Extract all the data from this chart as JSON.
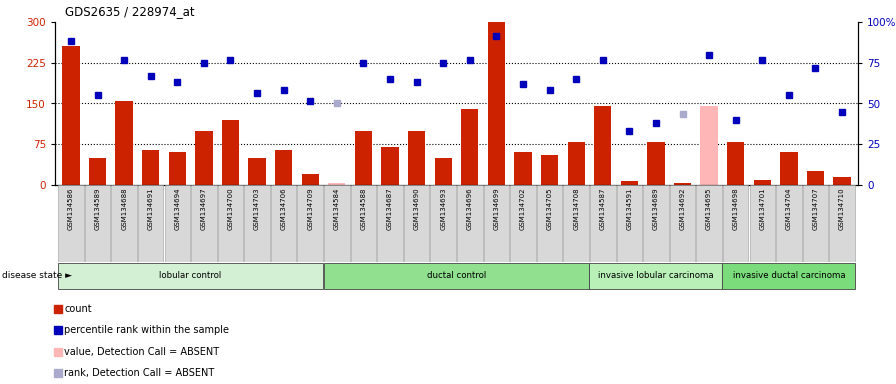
{
  "title": "GDS2635 / 228974_at",
  "samples": [
    "GSM134586",
    "GSM134589",
    "GSM134688",
    "GSM134691",
    "GSM134694",
    "GSM134697",
    "GSM134700",
    "GSM134703",
    "GSM134706",
    "GSM134709",
    "GSM134584",
    "GSM134588",
    "GSM134687",
    "GSM134690",
    "GSM134693",
    "GSM134696",
    "GSM134699",
    "GSM134702",
    "GSM134705",
    "GSM134708",
    "GSM134587",
    "GSM134591",
    "GSM134689",
    "GSM134692",
    "GSM134695",
    "GSM134698",
    "GSM134701",
    "GSM134704",
    "GSM134707",
    "GSM134710"
  ],
  "bar_values": [
    255,
    50,
    155,
    65,
    60,
    100,
    120,
    50,
    65,
    20,
    3,
    100,
    70,
    100,
    50,
    140,
    300,
    60,
    55,
    80,
    145,
    8,
    80,
    3,
    145,
    80,
    10,
    60,
    25,
    15
  ],
  "dot_values": [
    265,
    165,
    230,
    200,
    190,
    225,
    230,
    170,
    175,
    155,
    150,
    225,
    195,
    190,
    225,
    230,
    275,
    185,
    175,
    195,
    230,
    100,
    115,
    130,
    240,
    120,
    230,
    165,
    215,
    135
  ],
  "absent_bar_indices": [
    10,
    24
  ],
  "absent_dot_indices": [
    10,
    23
  ],
  "groups": [
    {
      "label": "lobular control",
      "start": 0,
      "end": 10,
      "color": "#d4f0d4"
    },
    {
      "label": "ductal control",
      "start": 10,
      "end": 20,
      "color": "#90e090"
    },
    {
      "label": "invasive lobular carcinoma",
      "start": 20,
      "end": 25,
      "color": "#b8f0b8"
    },
    {
      "label": "invasive ductal carcinoma",
      "start": 25,
      "end": 30,
      "color": "#7adc7a"
    }
  ],
  "ylim_left": [
    0,
    300
  ],
  "ylim_right": [
    0,
    100
  ],
  "yticks_left": [
    0,
    75,
    150,
    225,
    300
  ],
  "yticks_right": [
    0,
    25,
    50,
    75,
    100
  ],
  "bar_color": "#cc2200",
  "dot_color": "#0000bb",
  "absent_bar_color": "#ffb6b6",
  "absent_dot_color": "#aaaacc",
  "bg_color": "#ffffff",
  "dotted_line_values": [
    75,
    150,
    225
  ],
  "legend_items": [
    {
      "label": "count",
      "color": "#cc2200"
    },
    {
      "label": "percentile rank within the sample",
      "color": "#0000bb"
    },
    {
      "label": "value, Detection Call = ABSENT",
      "color": "#ffb6b6"
    },
    {
      "label": "rank, Detection Call = ABSENT",
      "color": "#aaaacc"
    }
  ],
  "fig_width": 8.96,
  "fig_height": 3.84,
  "dpi": 100
}
